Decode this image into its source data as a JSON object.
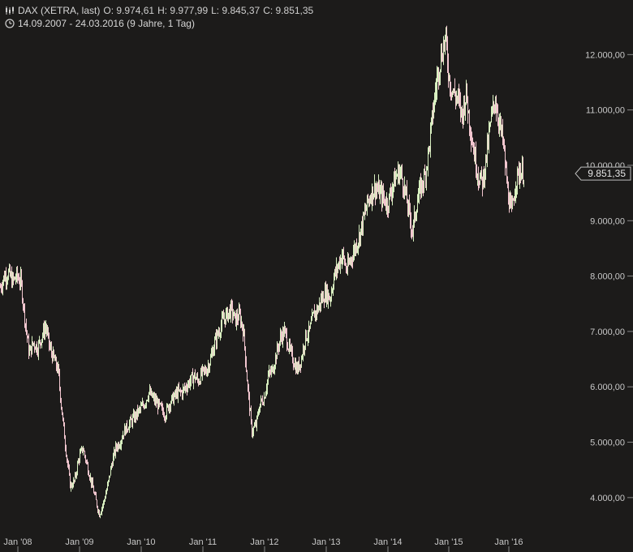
{
  "header": {
    "symbol": "DAX (XETRA, last)",
    "open": "O: 9.974,61",
    "high": "H: 9.977,99",
    "low": "L: 9.845,37",
    "close": "C: 9.851,35",
    "range": "14.09.2007 - 24.03.2016 (9 Jahre, 1 Tag)",
    "icons": [
      "candles-icon",
      "clock-icon"
    ]
  },
  "last_price_label": "9.851,35",
  "colors": {
    "background": "#1c1b1a",
    "up": "#d8f0c0",
    "down": "#f2c6cf",
    "axis_text": "#c8c8c8",
    "badge_bg": "#1c1b1a",
    "badge_border": "#bdbdbd"
  },
  "chart_data": {
    "type": "line",
    "title": "DAX (XETRA, last)",
    "xlabel": "",
    "ylabel": "",
    "ylim": [
      3500,
      12400
    ],
    "y_ticks": [
      {
        "value": 4000,
        "label": "4.000,00"
      },
      {
        "value": 5000,
        "label": "5.000,00"
      },
      {
        "value": 6000,
        "label": "6.000,00"
      },
      {
        "value": 7000,
        "label": "7.000,00"
      },
      {
        "value": 8000,
        "label": "8.000,00"
      },
      {
        "value": 9000,
        "label": "9.000,00"
      },
      {
        "value": 10000,
        "label": "10.000,00"
      },
      {
        "value": 11000,
        "label": "11.000,00"
      },
      {
        "value": 12000,
        "label": "12.000,00"
      }
    ],
    "x_ticks": [
      "Jan '08",
      "Jan '09",
      "Jan '10",
      "Jan '11",
      "Jan '12",
      "Jan '13",
      "Jan '14",
      "Jan '15",
      "Jan '16"
    ],
    "series": [
      {
        "values": [
          7800,
          8000,
          8050,
          7900,
          8000,
          7900,
          7200,
          6600,
          6800,
          6700,
          6900,
          7100,
          6700,
          6500,
          6300,
          5500,
          4800,
          4200,
          4300,
          4700,
          4900,
          4600,
          4300,
          4000,
          3700,
          3900,
          4200,
          4600,
          4900,
          5000,
          5200,
          5300,
          5400,
          5500,
          5600,
          5700,
          5900,
          5800,
          5700,
          5600,
          5500,
          5700,
          5800,
          5900,
          5900,
          6000,
          6100,
          6200,
          6100,
          6250,
          6300,
          6500,
          6800,
          7000,
          7200,
          7300,
          7400,
          7200,
          7300,
          7000,
          6000,
          5200,
          5300,
          5700,
          5800,
          6200,
          6300,
          6600,
          6900,
          7000,
          6700,
          6500,
          6300,
          6500,
          6900,
          7000,
          7300,
          7400,
          7600,
          7700,
          7600,
          8000,
          8200,
          8400,
          8100,
          8300,
          8500,
          8700,
          9000,
          9300,
          9500,
          9600,
          9500,
          9400,
          9300,
          9600,
          9800,
          9900,
          9600,
          9200,
          8800,
          9300,
          9600,
          9800,
          10300,
          11000,
          11600,
          12000,
          12300,
          11500,
          11300,
          11200,
          10900,
          11300,
          10700,
          10200,
          9800,
          9700,
          10200,
          10800,
          11200,
          10800,
          10400,
          9600,
          9100,
          9700,
          9900,
          9851
        ]
      }
    ],
    "last_value": 9851.35
  }
}
